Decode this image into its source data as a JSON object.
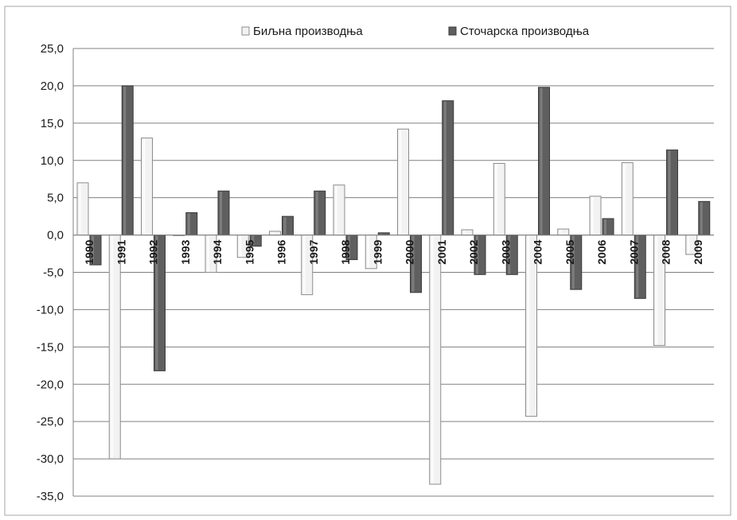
{
  "chart_data": {
    "type": "bar",
    "categories": [
      "1990",
      "1991",
      "1992",
      "1993",
      "1994",
      "1995",
      "1996",
      "1997",
      "1998",
      "1999",
      "2000",
      "2001",
      "2002",
      "2003",
      "2004",
      "2005",
      "2006",
      "2007",
      "2008",
      "2009"
    ],
    "series": [
      {
        "name": "Биљна производња",
        "color": "#f2f2f2",
        "values": [
          7.0,
          -30.0,
          13.0,
          0.0,
          -5.0,
          -3.0,
          0.5,
          -8.0,
          6.7,
          -4.5,
          14.2,
          -33.4,
          0.7,
          9.6,
          -24.3,
          0.8,
          5.2,
          9.7,
          -14.8,
          -2.6
        ]
      },
      {
        "name": "Сточарска производња",
        "color": "#5f5f5f",
        "values": [
          -4.0,
          20.0,
          -18.2,
          3.0,
          5.9,
          -1.5,
          2.5,
          5.9,
          -3.3,
          0.3,
          -7.7,
          18.0,
          -5.3,
          -5.3,
          19.8,
          -7.3,
          2.2,
          -8.5,
          11.4,
          4.5
        ]
      }
    ],
    "ylim": [
      -35,
      25
    ],
    "yticks": [
      "25,0",
      "20,0",
      "15,0",
      "10,0",
      "5,0",
      "0,0",
      "-5,0",
      "-10,0",
      "-15,0",
      "-20,0",
      "-25,0",
      "-30,0",
      "-35,0"
    ],
    "grid": true,
    "legend": "top-center",
    "title": "",
    "xlabel": "",
    "ylabel": ""
  }
}
